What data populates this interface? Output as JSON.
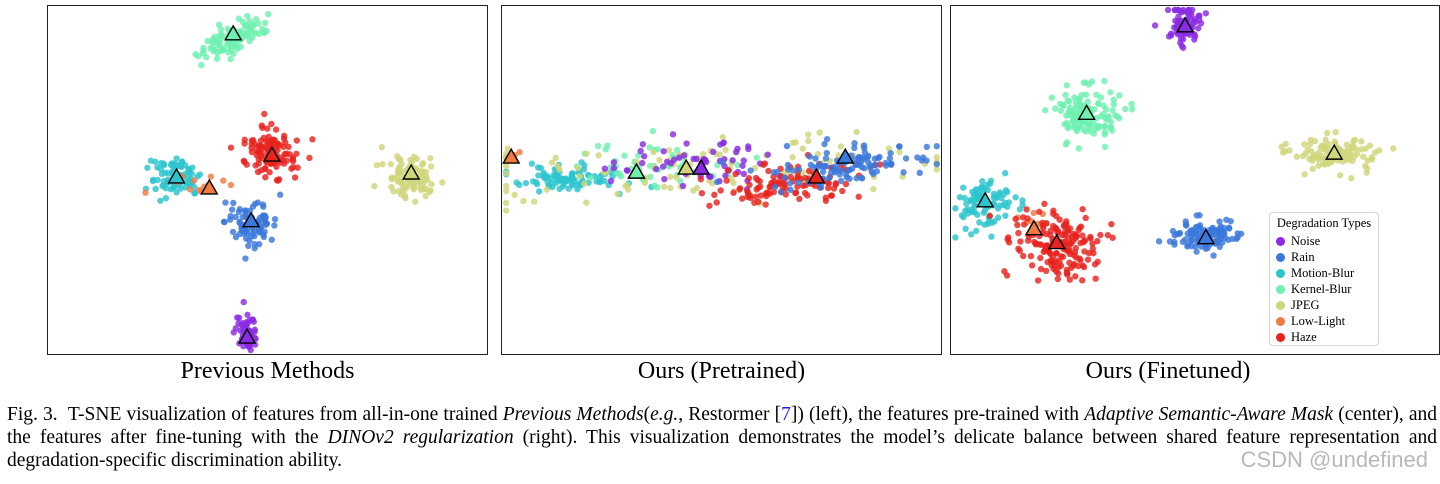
{
  "panels": [
    {
      "caption": "Previous Methods"
    },
    {
      "caption": "Ours (Pretrained)"
    },
    {
      "caption": "Ours (Finetuned)"
    }
  ],
  "legend": {
    "title": "Degradation Types",
    "items": [
      {
        "label": "Noise",
        "color": "#8a2be2"
      },
      {
        "label": "Rain",
        "color": "#3a78dc"
      },
      {
        "label": "Motion-Blur",
        "color": "#2cc5cd"
      },
      {
        "label": "Kernel-Blur",
        "color": "#6ef0b0"
      },
      {
        "label": "JPEG",
        "color": "#cfd67a"
      },
      {
        "label": "Low-Light",
        "color": "#f07a42"
      },
      {
        "label": "Haze",
        "color": "#e8231e"
      }
    ]
  },
  "figure_caption": {
    "label": "Fig. 3.",
    "t1": "T-SNE visualization of features from all-in-one trained ",
    "t2": "Previous Methods",
    "t3": "(",
    "t4": "e.g.",
    "t5": ", Restormer [",
    "ref": "7",
    "t6": "]) (left), the features pre-trained with ",
    "t7": "Adaptive Semantic-Aware Mask",
    "t8": " (center), and the features after fine-tuning with the ",
    "t9": "DINOv2 regularization",
    "t10": " (right). This visualization demonstrates the model’s delicate balance between shared feature representation and degradation-specific discrimination ability."
  },
  "watermark": "CSDN @undefined"
}
